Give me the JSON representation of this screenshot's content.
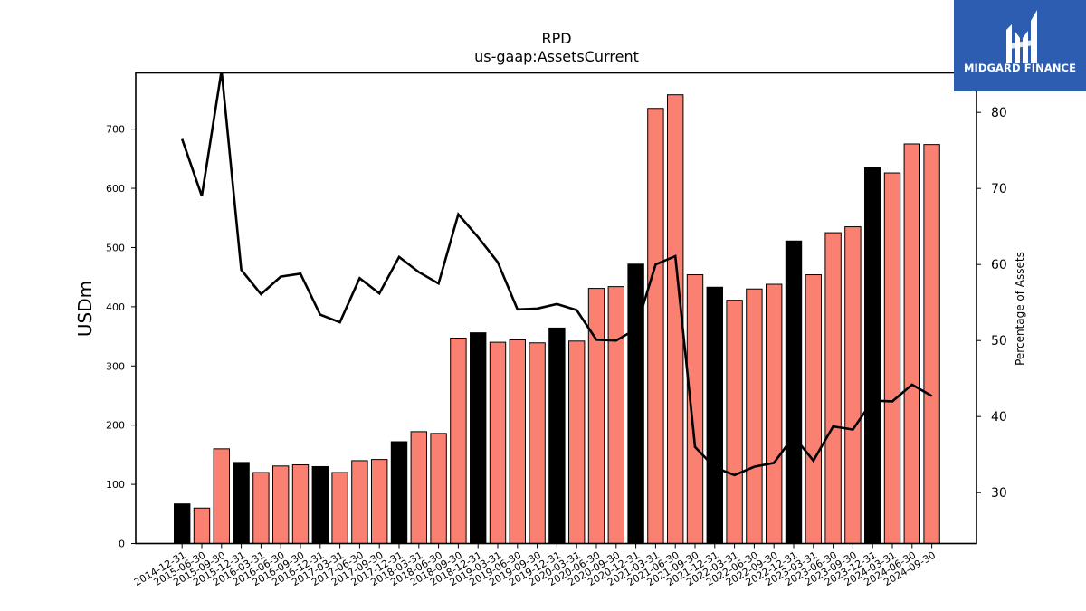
{
  "logo": {
    "text": "MIDGARD FINANCE",
    "background": "#2c5db1"
  },
  "chart_data": {
    "type": "bar",
    "title": "RPD",
    "subtitle": "us-gaap:AssetsCurrent",
    "ylabel": "USDm",
    "y2label": "Percentage of Assets",
    "ylim": [
      0,
      795
    ],
    "y2lim": [
      23.3,
      85.2
    ],
    "yticks": [
      0,
      100,
      200,
      300,
      400,
      500,
      600,
      700
    ],
    "y2ticks": [
      30,
      40,
      50,
      60,
      70,
      80
    ],
    "grid": false,
    "colors": {
      "bar_fiscal_year_end": "#000000",
      "bar_quarter": "#fa8072",
      "line": "#000000"
    },
    "categories": [
      "2014-12-31",
      "2015-06-30",
      "2015-09-30",
      "2015-12-31",
      "2016-03-31",
      "2016-06-30",
      "2016-09-30",
      "2016-12-31",
      "2017-03-31",
      "2017-06-30",
      "2017-09-30",
      "2017-12-31",
      "2018-03-31",
      "2018-06-30",
      "2018-09-30",
      "2018-12-31",
      "2019-03-31",
      "2019-06-30",
      "2019-09-30",
      "2019-12-31",
      "2020-03-31",
      "2020-06-30",
      "2020-09-30",
      "2020-12-31",
      "2021-03-31",
      "2021-06-30",
      "2021-09-30",
      "2021-12-31",
      "2022-03-31",
      "2022-06-30",
      "2022-09-30",
      "2022-12-31",
      "2023-03-31",
      "2023-06-30",
      "2023-09-30",
      "2023-12-31",
      "2024-03-31",
      "2024-06-30",
      "2024-09-30"
    ],
    "series": [
      {
        "kind": "bar",
        "values": [
          67,
          60,
          160,
          137,
          120,
          131,
          133,
          130,
          120,
          140,
          142,
          172,
          189,
          186,
          347,
          356,
          340,
          344,
          339,
          364,
          342,
          431,
          434,
          472,
          735,
          758,
          454,
          433,
          411,
          430,
          438,
          511,
          454,
          525,
          535,
          635,
          626,
          675,
          674
        ],
        "fiscal_year_end": [
          true,
          false,
          false,
          true,
          false,
          false,
          false,
          true,
          false,
          false,
          false,
          true,
          false,
          false,
          false,
          true,
          false,
          false,
          false,
          true,
          false,
          false,
          false,
          true,
          false,
          false,
          false,
          true,
          false,
          false,
          false,
          true,
          false,
          false,
          false,
          true,
          false,
          false,
          false
        ]
      },
      {
        "kind": "line",
        "axis": "right",
        "values": [
          76.5,
          69.0,
          85.5,
          59.3,
          56.1,
          58.4,
          58.8,
          53.4,
          52.4,
          58.2,
          56.2,
          61.0,
          59.0,
          57.5,
          66.6,
          63.6,
          60.3,
          54.1,
          54.2,
          54.8,
          54.0,
          50.1,
          50.0,
          51.5,
          60.0,
          61.1,
          36.0,
          33.3,
          32.3,
          33.4,
          33.9,
          37.4,
          34.2,
          38.7,
          38.3,
          42.1,
          42.0,
          44.2,
          42.7
        ]
      }
    ]
  }
}
